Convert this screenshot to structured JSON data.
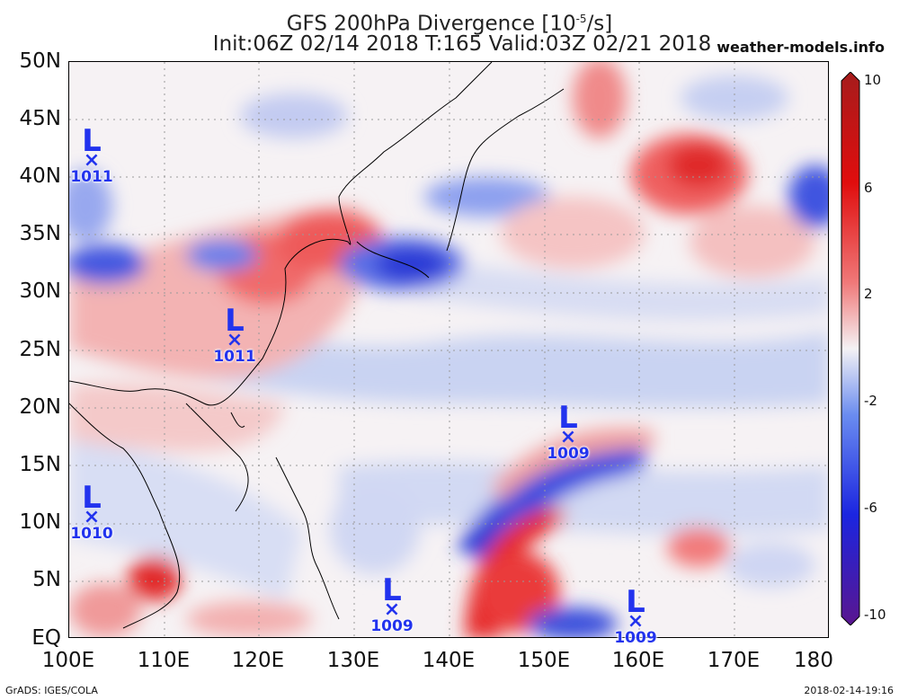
{
  "header": {
    "title_line1": "GFS 200hPa Divergence [10",
    "title_exp": "-5",
    "title_unit": "/s]",
    "title_line2": "Init:06Z 02/14 2018 T:165 Valid:03Z 02/21 2018",
    "source": "weather-models.info"
  },
  "axes": {
    "lat_labels": [
      "50N",
      "45N",
      "40N",
      "35N",
      "30N",
      "25N",
      "20N",
      "15N",
      "10N",
      "5N",
      "EQ"
    ],
    "lon_labels": [
      "100E",
      "110E",
      "120E",
      "130E",
      "140E",
      "150E",
      "160E",
      "170E",
      "180"
    ]
  },
  "colorbar": {
    "labels": [
      "10",
      "6",
      "2",
      "-2",
      "-6",
      "-10"
    ],
    "colors": [
      "#5a168f",
      "#1b25e0",
      "#6a8cf0",
      "#f4f2f4",
      "#f07878",
      "#e00d0d",
      "#a61c1c"
    ]
  },
  "lows": [
    {
      "symbol": "L",
      "pressure": "1011",
      "lat": 41,
      "lon": 102
    },
    {
      "symbol": "L",
      "pressure": "1011",
      "lat": 25.5,
      "lon": 117.5
    },
    {
      "symbol": "L",
      "pressure": "1010",
      "lat": 10,
      "lon": 102
    },
    {
      "symbol": "L",
      "pressure": "1009",
      "lat": 17,
      "lon": 152.5
    },
    {
      "symbol": "L",
      "pressure": "1009",
      "lat": 2,
      "lon": 134
    },
    {
      "symbol": "L",
      "pressure": "1009",
      "lat": 1,
      "lon": 160
    }
  ],
  "footer": {
    "left": "GrADS: IGES/COLA",
    "right": "2018-02-14-19:16"
  }
}
